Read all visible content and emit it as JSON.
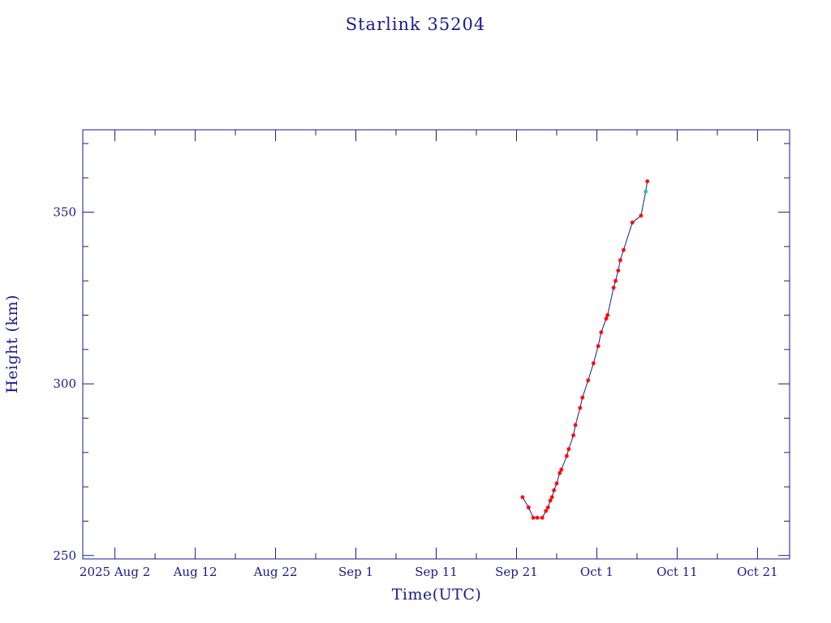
{
  "chart_data": {
    "type": "line",
    "title": "Starlink 35204",
    "xlabel": "Time(UTC)",
    "ylabel": "Height (km)",
    "xlim": [
      "2025-07-29",
      "2025-10-25"
    ],
    "ylim": [
      249,
      374
    ],
    "x_tick_labels": [
      {
        "date": "2025-08-02",
        "label": "2025"
      },
      {
        "date": "2025-08-12",
        "label": "Aug 12"
      },
      {
        "date": "2025-08-22",
        "label": "Aug 22"
      },
      {
        "date": "2025-09-01",
        "label": "Sep  1"
      },
      {
        "date": "2025-09-11",
        "label": "Sep 11"
      },
      {
        "date": "2025-09-21",
        "label": "Sep 21"
      },
      {
        "date": "2025-10-01",
        "label": "Oct  1"
      },
      {
        "date": "2025-10-11",
        "label": "Oct 11"
      },
      {
        "date": "2025-10-21",
        "label": "Oct 21"
      }
    ],
    "x_tick_label_year_prefix": {
      "date": "2025-08-02",
      "label": "2025 Aug  2"
    },
    "y_ticks": [
      250,
      300,
      350
    ],
    "grid": false,
    "colors": {
      "axes": "#1a1a8c",
      "line": "#1a1a8c",
      "marker": "#ff0000",
      "marker_last": "#00c8c8"
    },
    "series": [
      {
        "points": [
          {
            "x": "2025-09-21T18:00",
            "y": 267
          },
          {
            "x": "2025-09-22T12:00",
            "y": 264
          },
          {
            "x": "2025-09-23T02:00",
            "y": 261
          },
          {
            "x": "2025-09-23T14:00",
            "y": 261
          },
          {
            "x": "2025-09-24T05:00",
            "y": 261
          },
          {
            "x": "2025-09-24T16:00",
            "y": 263
          },
          {
            "x": "2025-09-24T22:00",
            "y": 264
          },
          {
            "x": "2025-09-25T05:00",
            "y": 266
          },
          {
            "x": "2025-09-25T10:00",
            "y": 267
          },
          {
            "x": "2025-09-25T16:00",
            "y": 269
          },
          {
            "x": "2025-09-26T00:00",
            "y": 271
          },
          {
            "x": "2025-09-26T09:00",
            "y": 274
          },
          {
            "x": "2025-09-26T14:00",
            "y": 275
          },
          {
            "x": "2025-09-27T06:00",
            "y": 279
          },
          {
            "x": "2025-09-27T12:00",
            "y": 281
          },
          {
            "x": "2025-09-28T02:00",
            "y": 285
          },
          {
            "x": "2025-09-28T08:00",
            "y": 288
          },
          {
            "x": "2025-09-28T22:00",
            "y": 293
          },
          {
            "x": "2025-09-29T05:00",
            "y": 296
          },
          {
            "x": "2025-09-29T22:00",
            "y": 301
          },
          {
            "x": "2025-09-30T14:00",
            "y": 306
          },
          {
            "x": "2025-10-01T04:00",
            "y": 311
          },
          {
            "x": "2025-10-01T13:00",
            "y": 315
          },
          {
            "x": "2025-10-02T04:00",
            "y": 319
          },
          {
            "x": "2025-10-02T08:00",
            "y": 320
          },
          {
            "x": "2025-10-03T02:00",
            "y": 328
          },
          {
            "x": "2025-10-03T08:00",
            "y": 330
          },
          {
            "x": "2025-10-03T16:00",
            "y": 333
          },
          {
            "x": "2025-10-03T22:00",
            "y": 336
          },
          {
            "x": "2025-10-04T08:00",
            "y": 339
          },
          {
            "x": "2025-10-05T10:00",
            "y": 347
          },
          {
            "x": "2025-10-06T12:00",
            "y": 349
          },
          {
            "x": "2025-10-07T02:00",
            "y": 356
          },
          {
            "x": "2025-10-07T07:00",
            "y": 359
          }
        ]
      }
    ]
  }
}
